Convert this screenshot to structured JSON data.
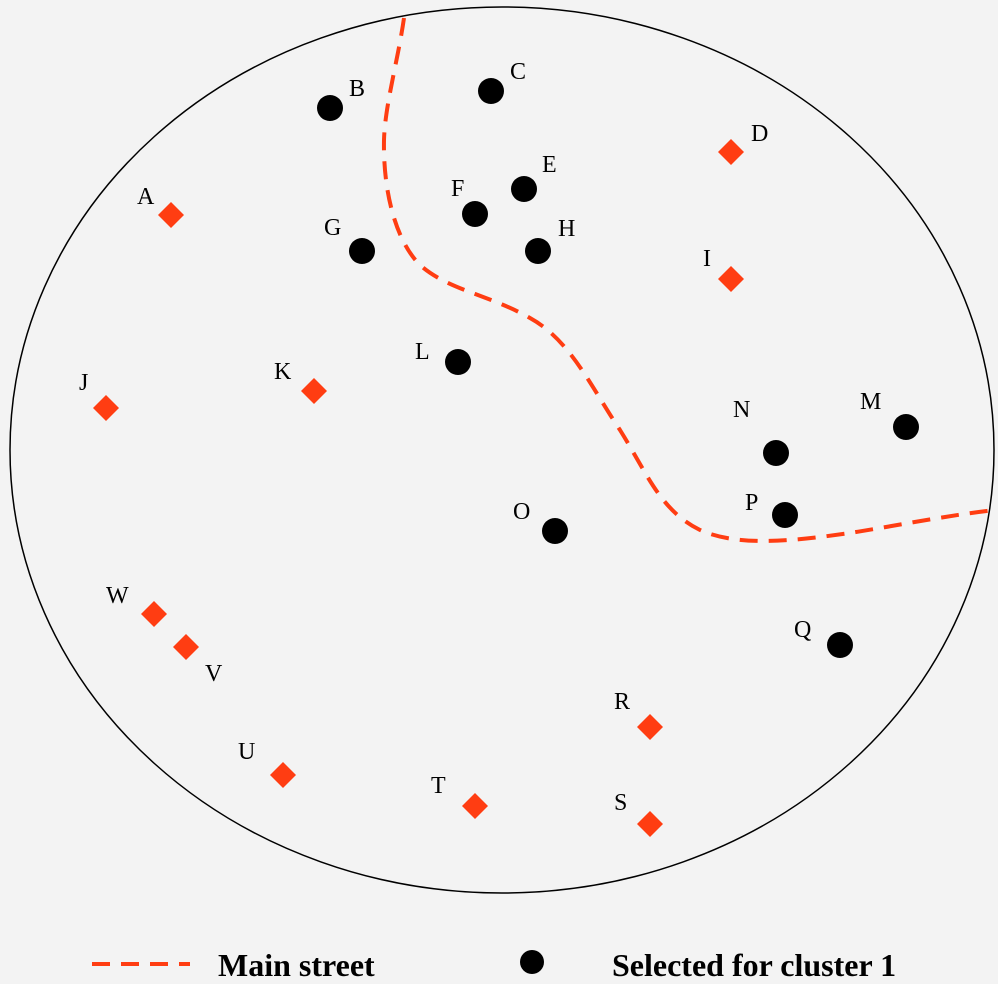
{
  "colors": {
    "background": "#f3f3f3",
    "boundary": "#000000",
    "street": "#ff3d12",
    "selected": "#000000",
    "unselected": "#ff3d12"
  },
  "points": [
    {
      "label": "A",
      "selected": false
    },
    {
      "label": "B",
      "selected": true
    },
    {
      "label": "C",
      "selected": true
    },
    {
      "label": "D",
      "selected": false
    },
    {
      "label": "E",
      "selected": true
    },
    {
      "label": "F",
      "selected": true
    },
    {
      "label": "G",
      "selected": true
    },
    {
      "label": "H",
      "selected": true
    },
    {
      "label": "I",
      "selected": false
    },
    {
      "label": "J",
      "selected": false
    },
    {
      "label": "K",
      "selected": false
    },
    {
      "label": "L",
      "selected": true
    },
    {
      "label": "M",
      "selected": true
    },
    {
      "label": "N",
      "selected": true
    },
    {
      "label": "O",
      "selected": true
    },
    {
      "label": "P",
      "selected": true
    },
    {
      "label": "Q",
      "selected": true
    },
    {
      "label": "R",
      "selected": false
    },
    {
      "label": "S",
      "selected": false
    },
    {
      "label": "T",
      "selected": false
    },
    {
      "label": "U",
      "selected": false
    },
    {
      "label": "V",
      "selected": false
    },
    {
      "label": "W",
      "selected": false
    }
  ],
  "legend": {
    "street_label": "Main street",
    "selected_label": "Selected for cluster 1"
  }
}
